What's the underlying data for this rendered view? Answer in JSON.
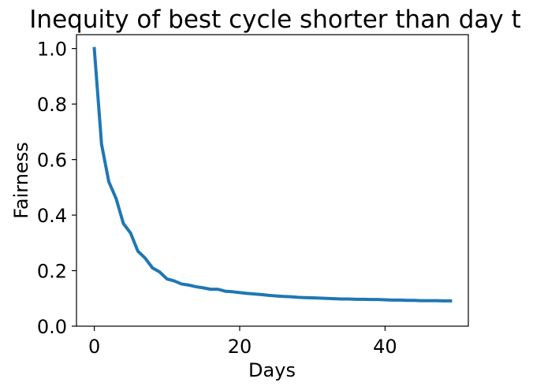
{
  "chart_data": {
    "type": "line",
    "title": "Inequity of best cycle shorter than day t",
    "xlabel": "Days",
    "ylabel": "Fairness",
    "xlim": [
      -2.45,
      51.45
    ],
    "ylim": [
      0.0,
      1.05
    ],
    "xticks": [
      0,
      20,
      40
    ],
    "yticks": [
      0.0,
      0.2,
      0.4,
      0.6,
      0.8,
      1.0
    ],
    "xtick_labels": [
      "0",
      "20",
      "40"
    ],
    "ytick_labels": [
      "0.0",
      "0.2",
      "0.4",
      "0.6",
      "0.8",
      "1.0"
    ],
    "grid": false,
    "legend": false,
    "series": [
      {
        "color": "#1f77b4",
        "x": [
          0,
          1,
          2,
          3,
          4,
          5,
          6,
          7,
          8,
          9,
          10,
          11,
          12,
          13,
          14,
          15,
          16,
          17,
          18,
          19,
          20,
          21,
          22,
          23,
          24,
          25,
          26,
          27,
          28,
          29,
          30,
          31,
          32,
          33,
          34,
          35,
          36,
          37,
          38,
          39,
          40,
          41,
          42,
          43,
          44,
          45,
          46,
          47,
          48,
          49
        ],
        "y": [
          1.0,
          0.655,
          0.52,
          0.46,
          0.37,
          0.335,
          0.27,
          0.245,
          0.21,
          0.195,
          0.17,
          0.163,
          0.152,
          0.148,
          0.142,
          0.138,
          0.133,
          0.133,
          0.126,
          0.124,
          0.121,
          0.118,
          0.116,
          0.114,
          0.111,
          0.109,
          0.107,
          0.106,
          0.104,
          0.103,
          0.102,
          0.101,
          0.1,
          0.099,
          0.098,
          0.098,
          0.097,
          0.097,
          0.096,
          0.096,
          0.095,
          0.094,
          0.094,
          0.093,
          0.093,
          0.092,
          0.092,
          0.092,
          0.091,
          0.091
        ]
      }
    ]
  }
}
